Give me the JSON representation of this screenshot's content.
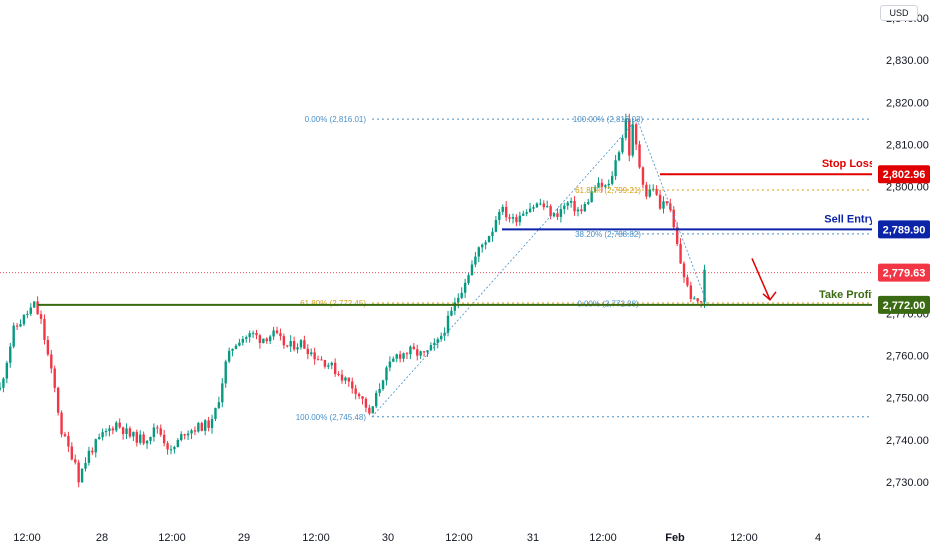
{
  "currency": "USD",
  "colors": {
    "up": "#089981",
    "down": "#f23645",
    "stop_loss": "#e00000",
    "sell_entry": "#0c24a8",
    "take_profit": "#3a6b12",
    "fib": "#4a90c8",
    "fib_mid": "#d4a017",
    "current": "#f23645"
  },
  "chart_data": {
    "type": "candlestick",
    "y_ticks": [
      "2,730.00",
      "2,740.00",
      "2,750.00",
      "2,760.00",
      "2,770.00",
      "2,780.00",
      "2,790.00",
      "2,800.00",
      "2,810.00",
      "2,820.00",
      "2,830.00",
      "2,840.00"
    ],
    "x_ticks": [
      "12:00",
      "28",
      "12:00",
      "29",
      "12:00",
      "30",
      "12:00",
      "31",
      "12:00",
      "Feb",
      "12:00",
      "4"
    ],
    "ylim": [
      2726,
      2844
    ],
    "levels": {
      "stop_loss": {
        "label": "Stop Loss",
        "value": 2802.96,
        "tag": "2,802.96"
      },
      "sell_entry": {
        "label": "Sell Entry",
        "value": 2789.9,
        "tag": "2,789.90"
      },
      "take_profit": {
        "label": "Take Profit",
        "value": 2772.0,
        "tag": "2,772.00"
      },
      "current_price": {
        "value": 2779.63,
        "tag": "2,779.63"
      }
    },
    "fib_left": [
      {
        "label": "0.00% (2,816.01)",
        "value": 2816.01
      },
      {
        "label": "61.80% (2,772.45)",
        "value": 2772.45
      },
      {
        "label": "100.00% (2,745.48)",
        "value": 2745.48
      }
    ],
    "fib_right": [
      {
        "label": "100.00% (2,816.03)",
        "value": 2816.03
      },
      {
        "label": "61.80% (2,799.21)",
        "value": 2799.21
      },
      {
        "label": "38.20% (2,788.82)",
        "value": 2788.82
      },
      {
        "label": "0.00% (2,772.38)",
        "value": 2772.38
      }
    ],
    "price_path": [
      [
        0,
        2752
      ],
      [
        4,
        2766
      ],
      [
        8,
        2770
      ],
      [
        10,
        2772
      ],
      [
        12,
        2768
      ],
      [
        16,
        2752
      ],
      [
        18,
        2742
      ],
      [
        20,
        2738
      ],
      [
        22,
        2735
      ],
      [
        23,
        2731
      ],
      [
        26,
        2737
      ],
      [
        30,
        2741
      ],
      [
        34,
        2744
      ],
      [
        38,
        2741
      ],
      [
        42,
        2740
      ],
      [
        46,
        2743
      ],
      [
        50,
        2737
      ],
      [
        54,
        2742
      ],
      [
        58,
        2743
      ],
      [
        62,
        2744
      ],
      [
        64,
        2750
      ],
      [
        66,
        2758
      ],
      [
        68,
        2762
      ],
      [
        70,
        2764
      ],
      [
        74,
        2765
      ],
      [
        76,
        2764
      ],
      [
        80,
        2765
      ],
      [
        84,
        2762
      ],
      [
        88,
        2763
      ],
      [
        92,
        2760
      ],
      [
        96,
        2758
      ],
      [
        100,
        2755
      ],
      [
        104,
        2752
      ],
      [
        107,
        2748
      ],
      [
        108,
        2745.5
      ],
      [
        112,
        2755
      ],
      [
        116,
        2760
      ],
      [
        120,
        2761
      ],
      [
        124,
        2760
      ],
      [
        128,
        2763
      ],
      [
        132,
        2770
      ],
      [
        136,
        2778
      ],
      [
        140,
        2785
      ],
      [
        144,
        2790
      ],
      [
        146,
        2795
      ],
      [
        150,
        2792
      ],
      [
        154,
        2795
      ],
      [
        158,
        2796
      ],
      [
        162,
        2793
      ],
      [
        166,
        2796
      ],
      [
        170,
        2794
      ],
      [
        174,
        2800
      ],
      [
        178,
        2800
      ],
      [
        180,
        2806
      ],
      [
        182,
        2812
      ],
      [
        183,
        2816
      ],
      [
        184,
        2808
      ],
      [
        185,
        2814
      ],
      [
        187,
        2805
      ],
      [
        189,
        2798
      ],
      [
        191,
        2800
      ],
      [
        193,
        2795
      ],
      [
        195,
        2797
      ],
      [
        197,
        2790
      ],
      [
        199,
        2782
      ],
      [
        201,
        2776
      ],
      [
        203,
        2772.5
      ],
      [
        205,
        2773
      ],
      [
        206,
        2779.6
      ]
    ]
  }
}
